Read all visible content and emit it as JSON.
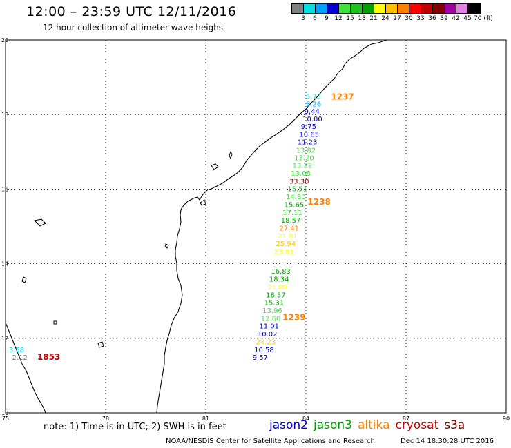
{
  "header": {
    "title": "12:00 – 23:59 UTC 12/11/2016",
    "subtitle": "12 hour collection of altimeter wave heighs"
  },
  "colorbar": {
    "colors": [
      "#808080",
      "#00e0e0",
      "#00a0ff",
      "#0000d0",
      "#40e040",
      "#20c020",
      "#00a000",
      "#ffff00",
      "#ffc000",
      "#ff8000",
      "#ff0000",
      "#c00000",
      "#800000",
      "#a000a0",
      "#e080e0",
      "#000000"
    ],
    "labels": [
      "3",
      "6",
      "9",
      "12",
      "15",
      "18",
      "21",
      "24",
      "27",
      "30",
      "33",
      "36",
      "39",
      "42",
      "45",
      "70 (ft)"
    ]
  },
  "map": {
    "lon_range": [
      75,
      90
    ],
    "lat_range": [
      10,
      20
    ],
    "x_labels": [
      "75",
      "78",
      "81",
      "84",
      "87",
      "90"
    ],
    "y_labels": [
      "20",
      "18",
      "16",
      "14",
      "12",
      "10"
    ],
    "observations": [
      {
        "text": "5.73",
        "lon": 84.0,
        "lat": 18.42,
        "color": "#00e0e0"
      },
      {
        "text": "8.26",
        "lon": 84.0,
        "lat": 18.22,
        "color": "#00a0ff"
      },
      {
        "text": "9.44",
        "lon": 83.95,
        "lat": 18.02,
        "color": "#0000d0"
      },
      {
        "text": "10.00",
        "lon": 83.9,
        "lat": 17.82,
        "color": "#0000d0"
      },
      {
        "text": "9.75",
        "lon": 83.85,
        "lat": 17.62,
        "color": "#0000d0"
      },
      {
        "text": "10.65",
        "lon": 83.8,
        "lat": 17.4,
        "color": "#0000d0"
      },
      {
        "text": "11.23",
        "lon": 83.75,
        "lat": 17.2,
        "color": "#0000d0"
      },
      {
        "text": "13.82",
        "lon": 83.7,
        "lat": 16.98,
        "color": "#40e040"
      },
      {
        "text": "13.20",
        "lon": 83.65,
        "lat": 16.77,
        "color": "#40e040"
      },
      {
        "text": "13.22",
        "lon": 83.6,
        "lat": 16.57,
        "color": "#40e040"
      },
      {
        "text": "13.08",
        "lon": 83.55,
        "lat": 16.36,
        "color": "#40e040"
      },
      {
        "text": "33.30",
        "lon": 83.5,
        "lat": 16.15,
        "color": "#800000"
      },
      {
        "text": "15.51",
        "lon": 83.45,
        "lat": 15.94,
        "color": "#20c020"
      },
      {
        "text": "14.80",
        "lon": 83.4,
        "lat": 15.73,
        "color": "#40e040"
      },
      {
        "text": "15.65",
        "lon": 83.35,
        "lat": 15.52,
        "color": "#00a000"
      },
      {
        "text": "17.11",
        "lon": 83.3,
        "lat": 15.31,
        "color": "#00a000"
      },
      {
        "text": "18.57",
        "lon": 83.25,
        "lat": 15.1,
        "color": "#00a000"
      },
      {
        "text": "27.41",
        "lon": 83.2,
        "lat": 14.89,
        "color": "#ff8000"
      },
      {
        "text": "21.81",
        "lon": 83.15,
        "lat": 14.68,
        "color": "#ffff00"
      },
      {
        "text": "25.94",
        "lon": 83.1,
        "lat": 14.47,
        "color": "#ffc000"
      },
      {
        "text": "23.81",
        "lon": 83.05,
        "lat": 14.26,
        "color": "#ffff00"
      },
      {
        "text": "16.83",
        "lon": 82.95,
        "lat": 13.73,
        "color": "#00a000"
      },
      {
        "text": "18.34",
        "lon": 82.9,
        "lat": 13.52,
        "color": "#00a000"
      },
      {
        "text": "21.89",
        "lon": 82.85,
        "lat": 13.31,
        "color": "#ffff00"
      },
      {
        "text": "18.57",
        "lon": 82.8,
        "lat": 13.1,
        "color": "#00a000"
      },
      {
        "text": "15.31",
        "lon": 82.75,
        "lat": 12.89,
        "color": "#00a000"
      },
      {
        "text": "13.96",
        "lon": 82.7,
        "lat": 12.68,
        "color": "#40e040"
      },
      {
        "text": "12.60",
        "lon": 82.65,
        "lat": 12.47,
        "color": "#40e040"
      },
      {
        "text": "11.01",
        "lon": 82.6,
        "lat": 12.26,
        "color": "#0000d0"
      },
      {
        "text": "10.02",
        "lon": 82.55,
        "lat": 12.05,
        "color": "#0000d0"
      },
      {
        "text": "24.23",
        "lon": 82.5,
        "lat": 11.84,
        "color": "#ffc000"
      },
      {
        "text": "10.58",
        "lon": 82.45,
        "lat": 11.63,
        "color": "#0000d0"
      },
      {
        "text": "9.57",
        "lon": 82.4,
        "lat": 11.42,
        "color": "#0000d0"
      },
      {
        "text": "3.58",
        "lon": 75.1,
        "lat": 11.63,
        "color": "#00e0e0"
      },
      {
        "text": "2.12",
        "lon": 75.2,
        "lat": 11.42,
        "color": "#808080"
      }
    ],
    "pass_times": [
      {
        "text": "1237",
        "lon": 84.75,
        "lat": 18.4,
        "color": "#ff8000"
      },
      {
        "text": "1238",
        "lon": 84.05,
        "lat": 15.58,
        "color": "#ff8000"
      },
      {
        "text": "1239",
        "lon": 83.3,
        "lat": 12.49,
        "color": "#ff8000"
      },
      {
        "text": "1853",
        "lon": 75.95,
        "lat": 11.42,
        "color": "#c00000"
      }
    ]
  },
  "note": "note: 1) Time is in UTC; 2) SWH is in feet",
  "legend": [
    {
      "label": "jason2",
      "color": "#0000d0"
    },
    {
      "label": "jason3",
      "color": "#00a000"
    },
    {
      "label": "altika",
      "color": "#ff8000"
    },
    {
      "label": "cryosat",
      "color": "#c00000"
    },
    {
      "label": "s3a",
      "color": "#800000"
    }
  ],
  "footer": {
    "credit": "NOAA/NESDIS Center for Satellite Applications and Research",
    "timestamp": "Dec 14 18:30:28 UTC 2016"
  }
}
